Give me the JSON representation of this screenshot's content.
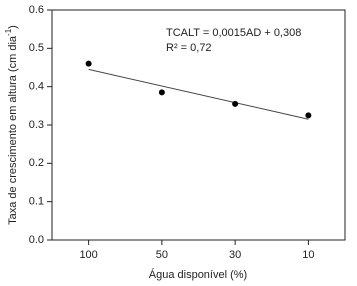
{
  "chart_data": {
    "type": "scatter",
    "x_label": "Água disponível (%)",
    "y_label": {
      "text": "Taxa de crescimento em altura (cm dia",
      "superscript": "-1",
      "suffix": ")"
    },
    "annotations": [
      "TCALT = 0,0015AD + 0,308",
      "R² = 0,72"
    ],
    "categories": [
      "100",
      "50",
      "30",
      "10"
    ],
    "values": [
      0.46,
      0.385,
      0.355,
      0.325
    ],
    "color": "#000000",
    "trendline": {
      "values": [
        0.445,
        0.315
      ],
      "color": "#444444"
    },
    "ylim": [
      0,
      0.6
    ],
    "yticks": [
      {
        "value": 0,
        "label": "0.0"
      },
      0.1,
      0.2,
      0.3,
      0.4,
      0.5,
      0.6
    ],
    "grid": false
  }
}
